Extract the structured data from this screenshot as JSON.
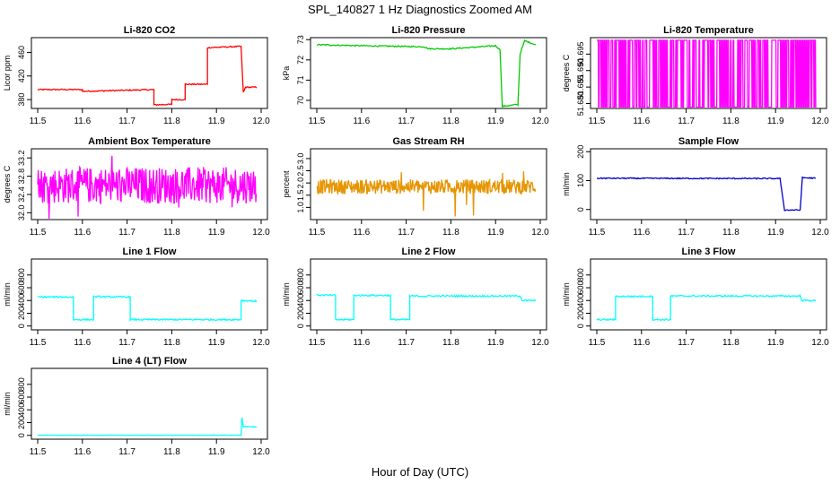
{
  "figure": {
    "title": "SPL_140827  1 Hz Diagnostics Zoomed AM",
    "xlabel": "Hour of Day (UTC)"
  },
  "chart_data": [
    {
      "type": "line",
      "title": "Li-820 CO2",
      "ylabel": "Licor ppm",
      "xlim": [
        11.5,
        12.0
      ],
      "ylim": [
        365,
        485
      ],
      "xticks": [
        11.5,
        11.6,
        11.7,
        11.8,
        11.9,
        12.0
      ],
      "xtick_labels": [
        "11.5",
        "11.6",
        "11.7",
        "11.8",
        "11.9",
        "12.0"
      ],
      "yticks": [
        380,
        420,
        460
      ],
      "ytick_labels": [
        "380",
        "420",
        "460"
      ],
      "grid": false,
      "box": true,
      "series": [
        {
          "color": "#ff0000",
          "x": [
            11.5,
            11.6,
            11.6,
            11.76,
            11.76,
            11.8,
            11.8,
            11.83,
            11.83,
            11.88,
            11.88,
            11.95,
            11.955,
            11.96,
            11.965,
            11.99
          ],
          "y": [
            397,
            397,
            394,
            397,
            371,
            372,
            380,
            380,
            406,
            406,
            468,
            470,
            470,
            392,
            401,
            401
          ],
          "noise": 1.0
        }
      ]
    },
    {
      "type": "line",
      "title": "Li-820 Pressure",
      "ylabel": "kPa",
      "xlim": [
        11.5,
        12.0
      ],
      "ylim": [
        69.6,
        73.1
      ],
      "xticks": [
        11.5,
        11.6,
        11.7,
        11.8,
        11.9,
        12.0
      ],
      "xtick_labels": [
        "11.5",
        "11.6",
        "11.7",
        "11.8",
        "11.9",
        "12.0"
      ],
      "yticks": [
        70,
        71,
        72,
        73
      ],
      "ytick_labels": [
        "70",
        "71",
        "72",
        "73"
      ],
      "grid": false,
      "box": true,
      "series": [
        {
          "color": "#00cc00",
          "x": [
            11.5,
            11.6,
            11.74,
            11.75,
            11.8,
            11.9,
            11.91,
            11.915,
            11.95,
            11.955,
            11.965,
            11.99
          ],
          "y": [
            72.75,
            72.7,
            72.65,
            72.55,
            72.55,
            72.7,
            72.5,
            69.7,
            69.8,
            72.3,
            72.95,
            72.75
          ],
          "noise": 0.03
        }
      ]
    },
    {
      "type": "line",
      "title": "Li-820 Temperature",
      "ylabel": "degrees C",
      "xlim": [
        11.5,
        12.0
      ],
      "ylim": [
        51.6785,
        51.7
      ],
      "xticks": [
        11.5,
        11.6,
        11.7,
        11.8,
        11.9,
        12.0
      ],
      "xtick_labels": [
        "11.5",
        "11.6",
        "11.7",
        "11.8",
        "11.9",
        "12.0"
      ],
      "yticks": [
        51.68,
        51.685,
        51.69,
        51.695
      ],
      "ytick_labels": [
        "51.680",
        "51.685",
        "51.690",
        "51.695"
      ],
      "grid": false,
      "box": true,
      "series": [
        {
          "color": "#ff00ff",
          "style": "square_wave",
          "x": [
            11.5,
            11.99
          ],
          "low": 51.6789,
          "high": 51.6992,
          "density": 0.7
        }
      ]
    },
    {
      "type": "line",
      "title": "Ambient Box Temperature",
      "ylabel": "degrees C",
      "xlim": [
        11.5,
        12.0
      ],
      "ylim": [
        31.85,
        33.4
      ],
      "xticks": [
        11.5,
        11.6,
        11.7,
        11.8,
        11.9,
        12.0
      ],
      "xtick_labels": [
        "11.5",
        "11.6",
        "11.7",
        "11.8",
        "11.9",
        "12.0"
      ],
      "yticks": [
        32.0,
        32.4,
        32.8,
        33.2
      ],
      "ytick_labels": [
        "32.0",
        "32.4",
        "32.8",
        "33.2"
      ],
      "grid": false,
      "box": true,
      "series": [
        {
          "color": "#ff00ff",
          "style": "noise",
          "x": [
            11.5,
            11.99
          ],
          "center": 32.6,
          "amplitude": 0.4,
          "spike": 0.75
        }
      ]
    },
    {
      "type": "line",
      "title": "Gas Stream RH",
      "ylabel": "percent",
      "xlim": [
        11.5,
        12.0
      ],
      "ylim": [
        0.5,
        3.4
      ],
      "xticks": [
        11.5,
        11.6,
        11.7,
        11.8,
        11.9,
        12.0
      ],
      "xtick_labels": [
        "11.5",
        "11.6",
        "11.7",
        "11.8",
        "11.9",
        "12.0"
      ],
      "yticks": [
        1.0,
        1.5,
        2.0,
        2.5,
        3.0
      ],
      "ytick_labels": [
        "1.0",
        "1.5",
        "2.0",
        "2.5",
        "3.0"
      ],
      "grid": false,
      "box": true,
      "series": [
        {
          "color": "#e69500",
          "style": "noise",
          "x": [
            11.5,
            11.99
          ],
          "center": 1.85,
          "amplitude": 0.3,
          "spike": 1.35
        }
      ]
    },
    {
      "type": "line",
      "title": "Sample Flow",
      "ylabel": "ml/min",
      "xlim": [
        11.5,
        12.0
      ],
      "ylim": [
        -35,
        210
      ],
      "xticks": [
        11.5,
        11.6,
        11.7,
        11.8,
        11.9,
        12.0
      ],
      "xtick_labels": [
        "11.5",
        "11.6",
        "11.7",
        "11.8",
        "11.9",
        "12.0"
      ],
      "yticks": [
        0,
        100,
        200
      ],
      "ytick_labels": [
        "0",
        "100",
        "200"
      ],
      "grid": false,
      "box": true,
      "series": [
        {
          "color": "#0000cc",
          "x": [
            11.5,
            11.91,
            11.92,
            11.955,
            11.96,
            11.99
          ],
          "y": [
            108,
            107,
            -2,
            -2,
            110,
            108
          ],
          "noise": 2
        }
      ]
    },
    {
      "type": "line",
      "title": "Line 1 Flow",
      "ylabel": "ml/min",
      "xlim": [
        11.5,
        12.0
      ],
      "ylim": [
        -60,
        1050
      ],
      "xticks": [
        11.5,
        11.6,
        11.7,
        11.8,
        11.9,
        12.0
      ],
      "xtick_labels": [
        "11.5",
        "11.6",
        "11.7",
        "11.8",
        "11.9",
        "12.0"
      ],
      "yticks": [
        0,
        200,
        400,
        600,
        800
      ],
      "ytick_labels": [
        "0",
        "200",
        "400",
        "600",
        "800"
      ],
      "grid": false,
      "box": true,
      "series": [
        {
          "color": "#00ffff",
          "x": [
            11.5,
            11.58,
            11.58,
            11.625,
            11.625,
            11.707,
            11.707,
            11.955,
            11.955,
            11.99
          ],
          "y": [
            455,
            455,
            100,
            100,
            460,
            455,
            100,
            100,
            400,
            390
          ],
          "noise": 12
        }
      ]
    },
    {
      "type": "line",
      "title": "Line 2 Flow",
      "ylabel": "ml/min",
      "xlim": [
        11.5,
        12.0
      ],
      "ylim": [
        -60,
        1050
      ],
      "xticks": [
        11.5,
        11.6,
        11.7,
        11.8,
        11.9,
        12.0
      ],
      "xtick_labels": [
        "11.5",
        "11.6",
        "11.7",
        "11.8",
        "11.9",
        "12.0"
      ],
      "yticks": [
        0,
        200,
        400,
        600,
        800
      ],
      "ytick_labels": [
        "0",
        "200",
        "400",
        "600",
        "800"
      ],
      "grid": false,
      "box": true,
      "series": [
        {
          "color": "#00ffff",
          "x": [
            11.5,
            11.542,
            11.542,
            11.583,
            11.583,
            11.665,
            11.665,
            11.708,
            11.708,
            11.955,
            11.96,
            11.99
          ],
          "y": [
            485,
            480,
            100,
            100,
            480,
            480,
            100,
            100,
            470,
            470,
            400,
            400
          ],
          "noise": 12
        }
      ]
    },
    {
      "type": "line",
      "title": "Line 3 Flow",
      "ylabel": "ml/min",
      "xlim": [
        11.5,
        12.0
      ],
      "ylim": [
        -60,
        1050
      ],
      "xticks": [
        11.5,
        11.6,
        11.7,
        11.8,
        11.9,
        12.0
      ],
      "xtick_labels": [
        "11.5",
        "11.6",
        "11.7",
        "11.8",
        "11.9",
        "12.0"
      ],
      "yticks": [
        0,
        200,
        400,
        600,
        800
      ],
      "ytick_labels": [
        "0",
        "200",
        "400",
        "600",
        "800"
      ],
      "grid": false,
      "box": true,
      "series": [
        {
          "color": "#00ffff",
          "x": [
            11.5,
            11.542,
            11.542,
            11.625,
            11.625,
            11.665,
            11.665,
            11.955,
            11.96,
            11.99
          ],
          "y": [
            100,
            100,
            465,
            465,
            100,
            100,
            470,
            470,
            400,
            400
          ],
          "noise": 12
        }
      ]
    },
    {
      "type": "line",
      "title": "Line 4 (LT) Flow",
      "ylabel": "ml/min",
      "xlim": [
        11.5,
        12.0
      ],
      "ylim": [
        -60,
        1050
      ],
      "xticks": [
        11.5,
        11.6,
        11.7,
        11.8,
        11.9,
        12.0
      ],
      "xtick_labels": [
        "11.5",
        "11.6",
        "11.7",
        "11.8",
        "11.9",
        "12.0"
      ],
      "yticks": [
        0,
        200,
        400,
        600,
        800
      ],
      "ytick_labels": [
        "0",
        "200",
        "400",
        "600",
        "800"
      ],
      "grid": false,
      "box": true,
      "series": [
        {
          "color": "#00ffff",
          "x": [
            11.5,
            11.955,
            11.957,
            11.96,
            11.963,
            11.99
          ],
          "y": [
            3,
            3,
            280,
            130,
            140,
            130
          ],
          "noise": 2
        }
      ]
    }
  ]
}
